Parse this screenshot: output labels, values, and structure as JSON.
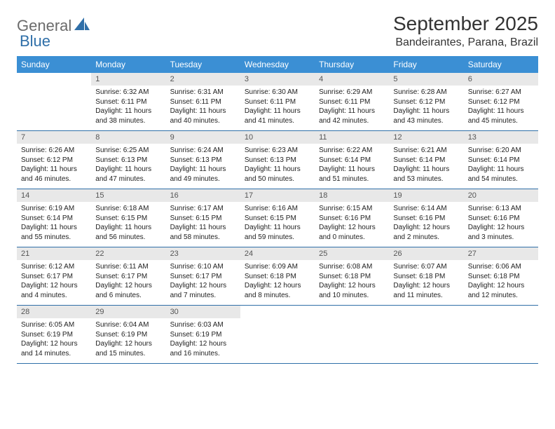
{
  "logo": {
    "text1": "General",
    "text2": "Blue"
  },
  "title": "September 2025",
  "subtitle": "Bandeirantes, Parana, Brazil",
  "colors": {
    "header_bar": "#3b8fd4",
    "week_divider": "#2f6fa8",
    "daynum_bg": "#e8e8e8",
    "logo_gray": "#6b6b6b",
    "logo_blue": "#2f6fa8"
  },
  "weekdays": [
    "Sunday",
    "Monday",
    "Tuesday",
    "Wednesday",
    "Thursday",
    "Friday",
    "Saturday"
  ],
  "weeks": [
    [
      null,
      {
        "n": "1",
        "sr": "Sunrise: 6:32 AM",
        "ss": "Sunset: 6:11 PM",
        "d1": "Daylight: 11 hours",
        "d2": "and 38 minutes."
      },
      {
        "n": "2",
        "sr": "Sunrise: 6:31 AM",
        "ss": "Sunset: 6:11 PM",
        "d1": "Daylight: 11 hours",
        "d2": "and 40 minutes."
      },
      {
        "n": "3",
        "sr": "Sunrise: 6:30 AM",
        "ss": "Sunset: 6:11 PM",
        "d1": "Daylight: 11 hours",
        "d2": "and 41 minutes."
      },
      {
        "n": "4",
        "sr": "Sunrise: 6:29 AM",
        "ss": "Sunset: 6:11 PM",
        "d1": "Daylight: 11 hours",
        "d2": "and 42 minutes."
      },
      {
        "n": "5",
        "sr": "Sunrise: 6:28 AM",
        "ss": "Sunset: 6:12 PM",
        "d1": "Daylight: 11 hours",
        "d2": "and 43 minutes."
      },
      {
        "n": "6",
        "sr": "Sunrise: 6:27 AM",
        "ss": "Sunset: 6:12 PM",
        "d1": "Daylight: 11 hours",
        "d2": "and 45 minutes."
      }
    ],
    [
      {
        "n": "7",
        "sr": "Sunrise: 6:26 AM",
        "ss": "Sunset: 6:12 PM",
        "d1": "Daylight: 11 hours",
        "d2": "and 46 minutes."
      },
      {
        "n": "8",
        "sr": "Sunrise: 6:25 AM",
        "ss": "Sunset: 6:13 PM",
        "d1": "Daylight: 11 hours",
        "d2": "and 47 minutes."
      },
      {
        "n": "9",
        "sr": "Sunrise: 6:24 AM",
        "ss": "Sunset: 6:13 PM",
        "d1": "Daylight: 11 hours",
        "d2": "and 49 minutes."
      },
      {
        "n": "10",
        "sr": "Sunrise: 6:23 AM",
        "ss": "Sunset: 6:13 PM",
        "d1": "Daylight: 11 hours",
        "d2": "and 50 minutes."
      },
      {
        "n": "11",
        "sr": "Sunrise: 6:22 AM",
        "ss": "Sunset: 6:14 PM",
        "d1": "Daylight: 11 hours",
        "d2": "and 51 minutes."
      },
      {
        "n": "12",
        "sr": "Sunrise: 6:21 AM",
        "ss": "Sunset: 6:14 PM",
        "d1": "Daylight: 11 hours",
        "d2": "and 53 minutes."
      },
      {
        "n": "13",
        "sr": "Sunrise: 6:20 AM",
        "ss": "Sunset: 6:14 PM",
        "d1": "Daylight: 11 hours",
        "d2": "and 54 minutes."
      }
    ],
    [
      {
        "n": "14",
        "sr": "Sunrise: 6:19 AM",
        "ss": "Sunset: 6:14 PM",
        "d1": "Daylight: 11 hours",
        "d2": "and 55 minutes."
      },
      {
        "n": "15",
        "sr": "Sunrise: 6:18 AM",
        "ss": "Sunset: 6:15 PM",
        "d1": "Daylight: 11 hours",
        "d2": "and 56 minutes."
      },
      {
        "n": "16",
        "sr": "Sunrise: 6:17 AM",
        "ss": "Sunset: 6:15 PM",
        "d1": "Daylight: 11 hours",
        "d2": "and 58 minutes."
      },
      {
        "n": "17",
        "sr": "Sunrise: 6:16 AM",
        "ss": "Sunset: 6:15 PM",
        "d1": "Daylight: 11 hours",
        "d2": "and 59 minutes."
      },
      {
        "n": "18",
        "sr": "Sunrise: 6:15 AM",
        "ss": "Sunset: 6:16 PM",
        "d1": "Daylight: 12 hours",
        "d2": "and 0 minutes."
      },
      {
        "n": "19",
        "sr": "Sunrise: 6:14 AM",
        "ss": "Sunset: 6:16 PM",
        "d1": "Daylight: 12 hours",
        "d2": "and 2 minutes."
      },
      {
        "n": "20",
        "sr": "Sunrise: 6:13 AM",
        "ss": "Sunset: 6:16 PM",
        "d1": "Daylight: 12 hours",
        "d2": "and 3 minutes."
      }
    ],
    [
      {
        "n": "21",
        "sr": "Sunrise: 6:12 AM",
        "ss": "Sunset: 6:17 PM",
        "d1": "Daylight: 12 hours",
        "d2": "and 4 minutes."
      },
      {
        "n": "22",
        "sr": "Sunrise: 6:11 AM",
        "ss": "Sunset: 6:17 PM",
        "d1": "Daylight: 12 hours",
        "d2": "and 6 minutes."
      },
      {
        "n": "23",
        "sr": "Sunrise: 6:10 AM",
        "ss": "Sunset: 6:17 PM",
        "d1": "Daylight: 12 hours",
        "d2": "and 7 minutes."
      },
      {
        "n": "24",
        "sr": "Sunrise: 6:09 AM",
        "ss": "Sunset: 6:18 PM",
        "d1": "Daylight: 12 hours",
        "d2": "and 8 minutes."
      },
      {
        "n": "25",
        "sr": "Sunrise: 6:08 AM",
        "ss": "Sunset: 6:18 PM",
        "d1": "Daylight: 12 hours",
        "d2": "and 10 minutes."
      },
      {
        "n": "26",
        "sr": "Sunrise: 6:07 AM",
        "ss": "Sunset: 6:18 PM",
        "d1": "Daylight: 12 hours",
        "d2": "and 11 minutes."
      },
      {
        "n": "27",
        "sr": "Sunrise: 6:06 AM",
        "ss": "Sunset: 6:18 PM",
        "d1": "Daylight: 12 hours",
        "d2": "and 12 minutes."
      }
    ],
    [
      {
        "n": "28",
        "sr": "Sunrise: 6:05 AM",
        "ss": "Sunset: 6:19 PM",
        "d1": "Daylight: 12 hours",
        "d2": "and 14 minutes."
      },
      {
        "n": "29",
        "sr": "Sunrise: 6:04 AM",
        "ss": "Sunset: 6:19 PM",
        "d1": "Daylight: 12 hours",
        "d2": "and 15 minutes."
      },
      {
        "n": "30",
        "sr": "Sunrise: 6:03 AM",
        "ss": "Sunset: 6:19 PM",
        "d1": "Daylight: 12 hours",
        "d2": "and 16 minutes."
      },
      null,
      null,
      null,
      null
    ]
  ]
}
